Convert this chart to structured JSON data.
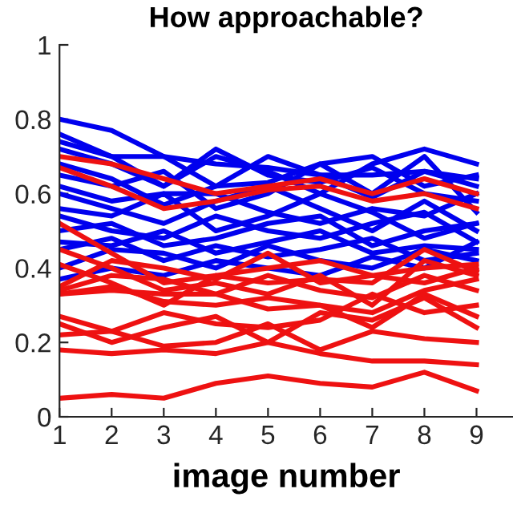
{
  "chart_data": {
    "type": "line",
    "title": "How approachable?",
    "xlabel": "image number",
    "x": [
      1,
      2,
      3,
      4,
      5,
      6,
      7,
      8,
      9
    ],
    "xlim": [
      1,
      9.7
    ],
    "xticks": [
      1,
      2,
      3,
      4,
      5,
      6,
      7,
      8,
      9
    ],
    "ylim": [
      0,
      1
    ],
    "yticks": [
      0,
      0.2,
      0.4,
      0.6,
      0.8,
      1
    ],
    "grid": false,
    "legend": false,
    "marker": "none",
    "line_style": "solid",
    "series": [
      {
        "color": "#0000ee",
        "values": [
          0.8,
          0.77,
          0.7,
          0.68,
          0.67,
          0.65,
          0.65,
          0.66,
          0.64
        ]
      },
      {
        "color": "#0000ee",
        "values": [
          0.76,
          0.7,
          0.62,
          0.7,
          0.66,
          0.6,
          0.68,
          0.72,
          0.68
        ]
      },
      {
        "color": "#0000ee",
        "values": [
          0.74,
          0.7,
          0.7,
          0.62,
          0.63,
          0.68,
          0.7,
          0.62,
          0.65
        ]
      },
      {
        "color": "#0000ee",
        "values": [
          0.72,
          0.68,
          0.62,
          0.72,
          0.65,
          0.63,
          0.67,
          0.6,
          0.58
        ]
      },
      {
        "color": "#0000ee",
        "values": [
          0.68,
          0.64,
          0.57,
          0.62,
          0.7,
          0.65,
          0.59,
          0.66,
          0.62
        ]
      },
      {
        "color": "#0000ee",
        "values": [
          0.65,
          0.62,
          0.66,
          0.56,
          0.6,
          0.68,
          0.6,
          0.7,
          0.55
        ]
      },
      {
        "color": "#0000ee",
        "values": [
          0.62,
          0.58,
          0.6,
          0.6,
          0.55,
          0.52,
          0.56,
          0.54,
          0.6
        ]
      },
      {
        "color": "#0000ee",
        "values": [
          0.6,
          0.56,
          0.52,
          0.58,
          0.62,
          0.56,
          0.5,
          0.58,
          0.5
        ]
      },
      {
        "color": "#0000ee",
        "values": [
          0.56,
          0.54,
          0.6,
          0.5,
          0.54,
          0.6,
          0.55,
          0.48,
          0.52
        ]
      },
      {
        "color": "#0000ee",
        "values": [
          0.54,
          0.5,
          0.48,
          0.54,
          0.5,
          0.48,
          0.52,
          0.55,
          0.47
        ]
      },
      {
        "color": "#0000ee",
        "values": [
          0.5,
          0.52,
          0.46,
          0.48,
          0.52,
          0.54,
          0.46,
          0.5,
          0.52
        ]
      },
      {
        "color": "#0000ee",
        "values": [
          0.47,
          0.46,
          0.5,
          0.44,
          0.47,
          0.5,
          0.44,
          0.46,
          0.45
        ]
      },
      {
        "color": "#0000ee",
        "values": [
          0.45,
          0.48,
          0.42,
          0.46,
          0.43,
          0.45,
          0.48,
          0.42,
          0.44
        ]
      },
      {
        "color": "#0000ee",
        "values": [
          0.4,
          0.45,
          0.44,
          0.4,
          0.46,
          0.42,
          0.4,
          0.45,
          0.42
        ]
      },
      {
        "color": "#0000ee",
        "values": [
          0.37,
          0.4,
          0.38,
          0.42,
          0.4,
          0.38,
          0.43,
          0.4,
          0.47
        ]
      },
      {
        "color": "#ee1111",
        "values": [
          0.7,
          0.68,
          0.64,
          0.6,
          0.62,
          0.64,
          0.6,
          0.64,
          0.6
        ]
      },
      {
        "color": "#ee1111",
        "values": [
          0.67,
          0.62,
          0.56,
          0.58,
          0.61,
          0.62,
          0.58,
          0.6,
          0.56
        ]
      },
      {
        "color": "#ee1111",
        "values": [
          0.52,
          0.44,
          0.36,
          0.38,
          0.4,
          0.42,
          0.38,
          0.36,
          0.4
        ]
      },
      {
        "color": "#ee1111",
        "values": [
          0.45,
          0.4,
          0.34,
          0.36,
          0.33,
          0.38,
          0.3,
          0.42,
          0.38
        ]
      },
      {
        "color": "#ee1111",
        "values": [
          0.41,
          0.36,
          0.3,
          0.38,
          0.36,
          0.37,
          0.36,
          0.45,
          0.39
        ]
      },
      {
        "color": "#ee1111",
        "values": [
          0.35,
          0.42,
          0.4,
          0.37,
          0.44,
          0.36,
          0.38,
          0.4,
          0.41
        ]
      },
      {
        "color": "#ee1111",
        "values": [
          0.34,
          0.38,
          0.37,
          0.33,
          0.38,
          0.34,
          0.32,
          0.38,
          0.34
        ]
      },
      {
        "color": "#ee1111",
        "values": [
          0.33,
          0.35,
          0.31,
          0.3,
          0.32,
          0.3,
          0.28,
          0.34,
          0.37
        ]
      },
      {
        "color": "#ee1111",
        "values": [
          0.33,
          0.34,
          0.33,
          0.33,
          0.29,
          0.3,
          0.24,
          0.33,
          0.27
        ]
      },
      {
        "color": "#ee1111",
        "values": [
          0.27,
          0.23,
          0.28,
          0.25,
          0.24,
          0.26,
          0.33,
          0.28,
          0.3
        ]
      },
      {
        "color": "#ee1111",
        "values": [
          0.25,
          0.2,
          0.24,
          0.27,
          0.2,
          0.28,
          0.26,
          0.32,
          0.24
        ]
      },
      {
        "color": "#ee1111",
        "values": [
          0.22,
          0.23,
          0.19,
          0.2,
          0.25,
          0.18,
          0.23,
          0.21,
          0.2
        ]
      },
      {
        "color": "#ee1111",
        "values": [
          0.18,
          0.17,
          0.18,
          0.17,
          0.2,
          0.17,
          0.15,
          0.15,
          0.14
        ]
      },
      {
        "color": "#ee1111",
        "values": [
          0.05,
          0.06,
          0.05,
          0.09,
          0.11,
          0.09,
          0.08,
          0.12,
          0.07
        ]
      }
    ]
  }
}
